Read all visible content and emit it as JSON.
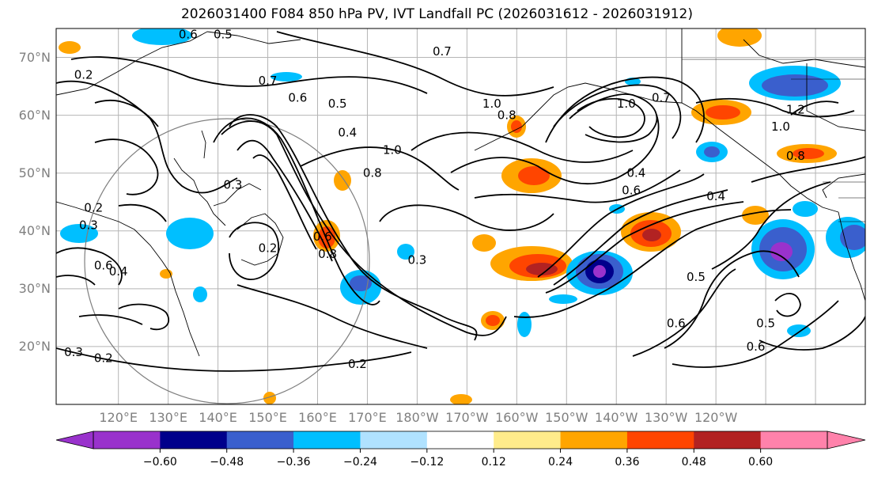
{
  "title": "2026031400 F084 850 hPa PV, IVT Landfall PC (2026031612 - 2026031912)",
  "lat_labels": [
    "70°N",
    "60°N",
    "50°N",
    "40°N",
    "30°N",
    "20°N"
  ],
  "lon_labels": [
    "120°E",
    "130°E",
    "140°E",
    "150°E",
    "160°E",
    "170°E",
    "180°W",
    "170°W",
    "160°W",
    "150°W",
    "140°W",
    "130°W",
    "120°W"
  ],
  "colorbar": {
    "labels": [
      "−0.60",
      "−0.48",
      "−0.36",
      "−0.24",
      "−0.12",
      "0.12",
      "0.24",
      "0.36",
      "0.48",
      "0.60"
    ],
    "colors": [
      "#9932cc",
      "#00008b",
      "#3a5fcd",
      "#00bfff",
      "#b0e2ff",
      "#ffffff",
      "#ffec8b",
      "#ffa500",
      "#ff4500",
      "#b22222",
      "#ff82ab"
    ]
  },
  "contour_labels": [
    {
      "text": "0.2",
      "lon": 113,
      "lat": 67
    },
    {
      "text": "0.6",
      "lon": 134,
      "lat": 74
    },
    {
      "text": "0.5",
      "lon": 141,
      "lat": 74
    },
    {
      "text": "0.7",
      "lon": 150,
      "lat": 66
    },
    {
      "text": "0.6",
      "lon": 156,
      "lat": 63
    },
    {
      "text": "0.5",
      "lon": 164,
      "lat": 62
    },
    {
      "text": "0.7",
      "lon": 185,
      "lat": 71
    },
    {
      "text": "1.0",
      "lon": 195,
      "lat": 62
    },
    {
      "text": "0.8",
      "lon": 198,
      "lat": 60
    },
    {
      "text": "1.0",
      "lon": 175,
      "lat": 54
    },
    {
      "text": "0.8",
      "lon": 171,
      "lat": 50
    },
    {
      "text": "0.4",
      "lon": 166,
      "lat": 57
    },
    {
      "text": "0.3",
      "lon": 143,
      "lat": 48
    },
    {
      "text": "0.2",
      "lon": 115,
      "lat": 44
    },
    {
      "text": "0.3",
      "lon": 114,
      "lat": 41
    },
    {
      "text": "0.2",
      "lon": 150,
      "lat": 37
    },
    {
      "text": "0.6",
      "lon": 117,
      "lat": 34
    },
    {
      "text": "0.4",
      "lon": 120,
      "lat": 33
    },
    {
      "text": "0.6",
      "lon": 161,
      "lat": 39
    },
    {
      "text": "0.8",
      "lon": 162,
      "lat": 36
    },
    {
      "text": "0.3",
      "lon": 180,
      "lat": 35
    },
    {
      "text": "0.2",
      "lon": 168,
      "lat": 17
    },
    {
      "text": "0.2",
      "lon": 117,
      "lat": 18
    },
    {
      "text": "0.3",
      "lon": 111,
      "lat": 19
    },
    {
      "text": "1.0",
      "lon": 222,
      "lat": 62
    },
    {
      "text": "0.7",
      "lon": 229,
      "lat": 63
    },
    {
      "text": "0.4",
      "lon": 224,
      "lat": 50
    },
    {
      "text": "0.6",
      "lon": 223,
      "lat": 47
    },
    {
      "text": "0.4",
      "lon": 240,
      "lat": 46
    },
    {
      "text": "0.5",
      "lon": 236,
      "lat": 32
    },
    {
      "text": "0.6",
      "lon": 232,
      "lat": 24
    },
    {
      "text": "0.5",
      "lon": 250,
      "lat": 24
    },
    {
      "text": "0.6",
      "lon": 248,
      "lat": 20
    },
    {
      "text": "0.8",
      "lon": 256,
      "lat": 53
    },
    {
      "text": "1.0",
      "lon": 253,
      "lat": 58
    },
    {
      "text": "1.2",
      "lon": 256,
      "lat": 61
    }
  ]
}
